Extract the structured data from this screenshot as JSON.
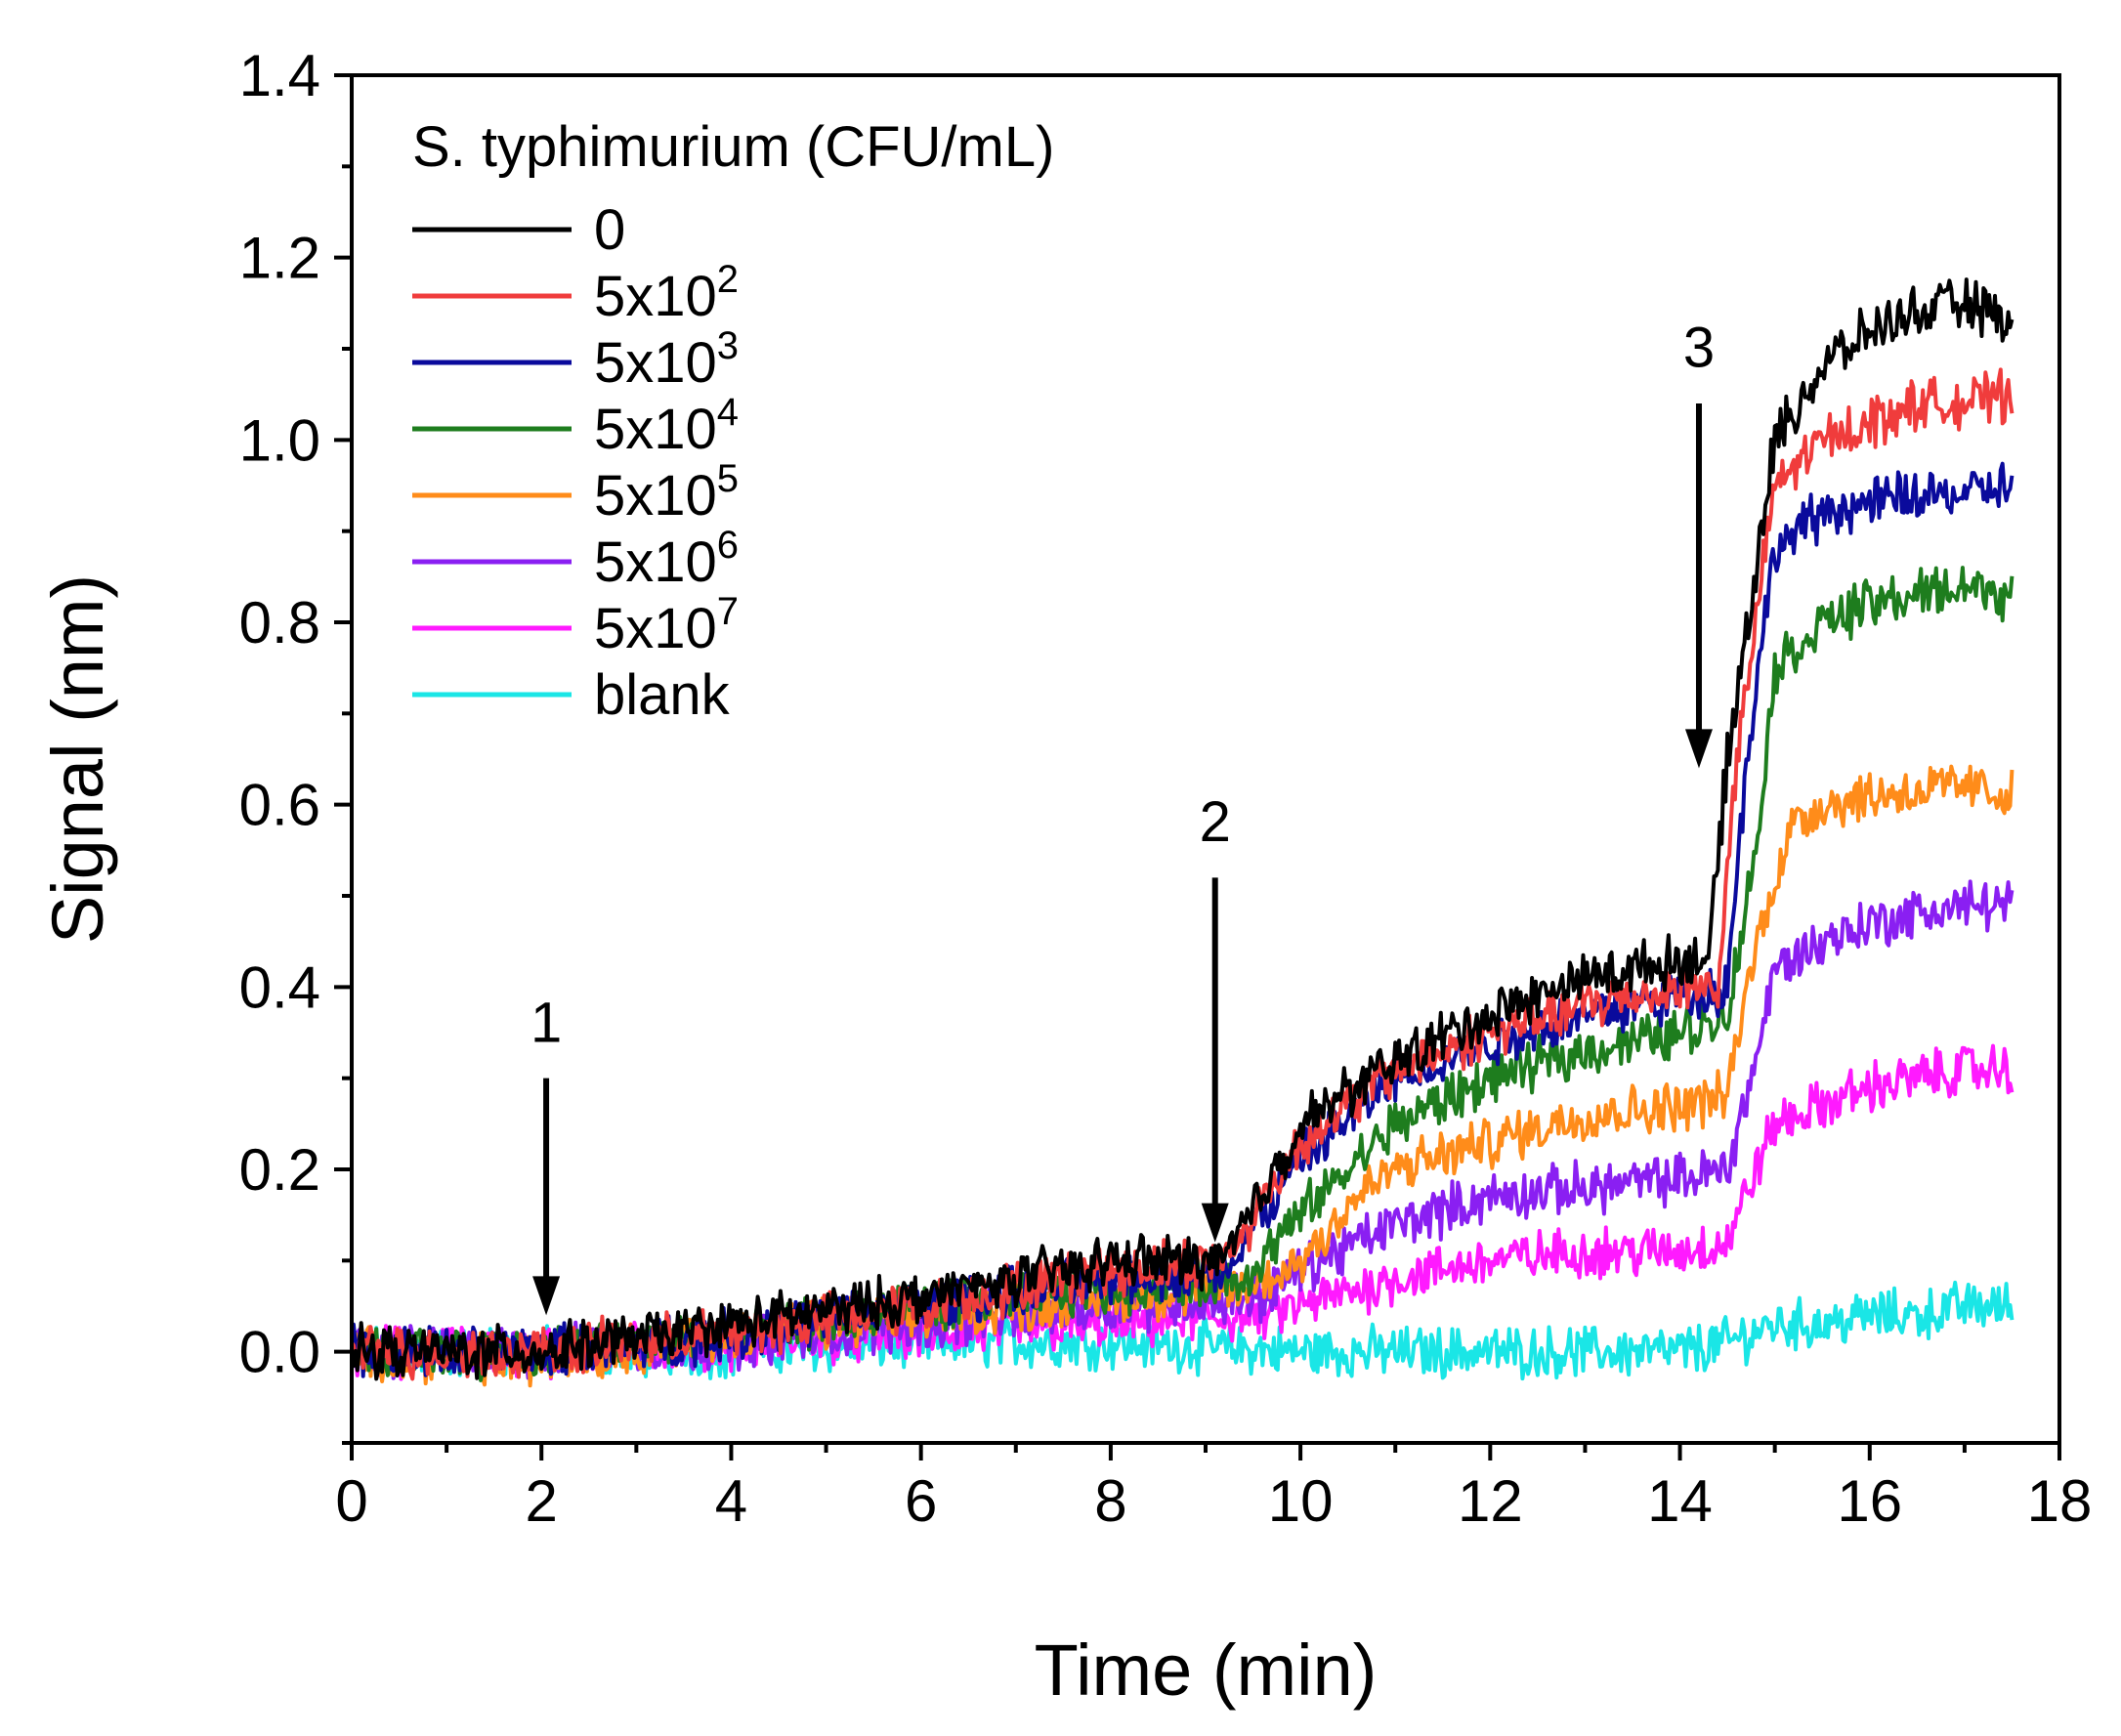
{
  "chart_data": {
    "type": "line",
    "title": "",
    "xlabel": "Time (min)",
    "ylabel": "Signal (nm)",
    "xlim": [
      0,
      18
    ],
    "ylim": [
      -0.1,
      1.4
    ],
    "xticks": [
      0,
      2,
      4,
      6,
      8,
      10,
      12,
      14,
      16,
      18
    ],
    "yticks": [
      0.0,
      0.2,
      0.4,
      0.6,
      0.8,
      1.0,
      1.2,
      1.4
    ],
    "xtick_labels": [
      "0",
      "2",
      "4",
      "6",
      "8",
      "10",
      "12",
      "14",
      "16",
      "18"
    ],
    "ytick_labels": [
      "0.0",
      "0.2",
      "0.4",
      "0.6",
      "0.8",
      "1.0",
      "1.2",
      "1.4"
    ],
    "grid": false,
    "legend": {
      "title": "S. typhimurium (CFU/mL)",
      "position": "top-left"
    },
    "series": [
      {
        "name": "0",
        "base": "0",
        "exp": "",
        "color": "#000000",
        "x": [
          0,
          2,
          4,
          6,
          8,
          9.2,
          10,
          11,
          12,
          13,
          14,
          14.3,
          14.5,
          15,
          15.5,
          16,
          16.5,
          17,
          17.5
        ],
        "y": [
          0,
          0,
          0.03,
          0.06,
          0.1,
          0.1,
          0.25,
          0.32,
          0.37,
          0.41,
          0.43,
          0.43,
          0.65,
          1.0,
          1.08,
          1.12,
          1.14,
          1.15,
          1.13
        ]
      },
      {
        "name": "5x10^2",
        "base": "5x10",
        "exp": "2",
        "color": "#f03c3c",
        "x": [
          0,
          2,
          4,
          6,
          8,
          9.2,
          10,
          11,
          12,
          13,
          14,
          14.4,
          14.6,
          15,
          15.5,
          16,
          16.5,
          17,
          17.5
        ],
        "y": [
          0,
          0,
          0.02,
          0.05,
          0.09,
          0.1,
          0.23,
          0.31,
          0.35,
          0.38,
          0.4,
          0.4,
          0.65,
          0.95,
          1.0,
          1.02,
          1.04,
          1.04,
          1.05
        ]
      },
      {
        "name": "5x10^3",
        "base": "5x10",
        "exp": "3",
        "color": "#0a0a9c",
        "x": [
          0,
          2,
          4,
          6,
          8,
          9.2,
          10,
          11,
          12,
          13,
          14,
          14.5,
          14.7,
          15,
          15.5,
          16,
          16.5,
          17,
          17.5
        ],
        "y": [
          0,
          0,
          0.02,
          0.05,
          0.08,
          0.09,
          0.21,
          0.3,
          0.34,
          0.37,
          0.39,
          0.4,
          0.65,
          0.88,
          0.92,
          0.93,
          0.94,
          0.94,
          0.95
        ]
      },
      {
        "name": "5x10^4",
        "base": "5x10",
        "exp": "4",
        "color": "#1e7d1e",
        "x": [
          0,
          2,
          4,
          6,
          8,
          9.4,
          10,
          11,
          12,
          13,
          14,
          14.5,
          14.8,
          15,
          15.5,
          16,
          16.5,
          17,
          17.5
        ],
        "y": [
          0,
          0,
          0.02,
          0.05,
          0.07,
          0.08,
          0.15,
          0.25,
          0.3,
          0.33,
          0.35,
          0.37,
          0.55,
          0.75,
          0.8,
          0.82,
          0.83,
          0.84,
          0.83
        ]
      },
      {
        "name": "5x10^5",
        "base": "5x10",
        "exp": "5",
        "color": "#ff8c1a",
        "x": [
          0,
          2,
          4,
          6,
          8,
          9.5,
          10,
          10.6,
          11,
          12,
          13,
          14,
          14.5,
          14.7,
          15,
          15.2,
          15.5,
          16,
          17,
          17.5
        ],
        "y": [
          0,
          -0.01,
          0.02,
          0.04,
          0.06,
          0.07,
          0.1,
          0.17,
          0.2,
          0.23,
          0.26,
          0.27,
          0.28,
          0.4,
          0.52,
          0.58,
          0.6,
          0.61,
          0.62,
          0.61
        ]
      },
      {
        "name": "5x10^6",
        "base": "5x10",
        "exp": "6",
        "color": "#8a1ff2",
        "x": [
          0,
          2,
          4,
          6,
          8,
          9.6,
          10,
          11,
          12,
          13,
          14,
          14.5,
          14.8,
          15,
          15.5,
          16,
          16.5,
          17,
          17.5
        ],
        "y": [
          0,
          0,
          0.01,
          0.03,
          0.05,
          0.06,
          0.09,
          0.14,
          0.17,
          0.18,
          0.19,
          0.2,
          0.32,
          0.42,
          0.45,
          0.47,
          0.48,
          0.49,
          0.49
        ]
      },
      {
        "name": "5x10^7",
        "base": "5x10",
        "exp": "7",
        "color": "#ff1aff",
        "x": [
          0,
          2,
          4,
          6,
          8,
          9.6,
          10,
          11,
          12,
          13,
          14,
          14.5,
          14.8,
          15,
          15.5,
          16,
          16.5,
          17,
          17.5
        ],
        "y": [
          0,
          0,
          0.01,
          0.02,
          0.03,
          0.04,
          0.05,
          0.08,
          0.1,
          0.11,
          0.11,
          0.12,
          0.2,
          0.25,
          0.27,
          0.29,
          0.3,
          0.31,
          0.31
        ]
      },
      {
        "name": "blank",
        "base": "blank",
        "exp": "",
        "color": "#1ae6e6",
        "x": [
          0,
          2,
          4,
          6,
          8,
          10,
          12,
          14,
          14.5,
          15,
          15.5,
          16,
          16.5,
          17,
          17.5
        ],
        "y": [
          0,
          0,
          0,
          0.01,
          0.01,
          0,
          0,
          0,
          0.01,
          0.03,
          0.03,
          0.04,
          0.04,
          0.05,
          0.05
        ]
      }
    ],
    "annotations": [
      {
        "text": "1",
        "x": 2.05,
        "y_tip": 0.04,
        "y_top": 0.3,
        "y_text": 0.34
      },
      {
        "text": "2",
        "x": 9.1,
        "y_tip": 0.12,
        "y_top": 0.52,
        "y_text": 0.56
      },
      {
        "text": "3",
        "x": 14.2,
        "y_tip": 0.64,
        "y_top": 1.04,
        "y_text": 1.08
      }
    ]
  }
}
